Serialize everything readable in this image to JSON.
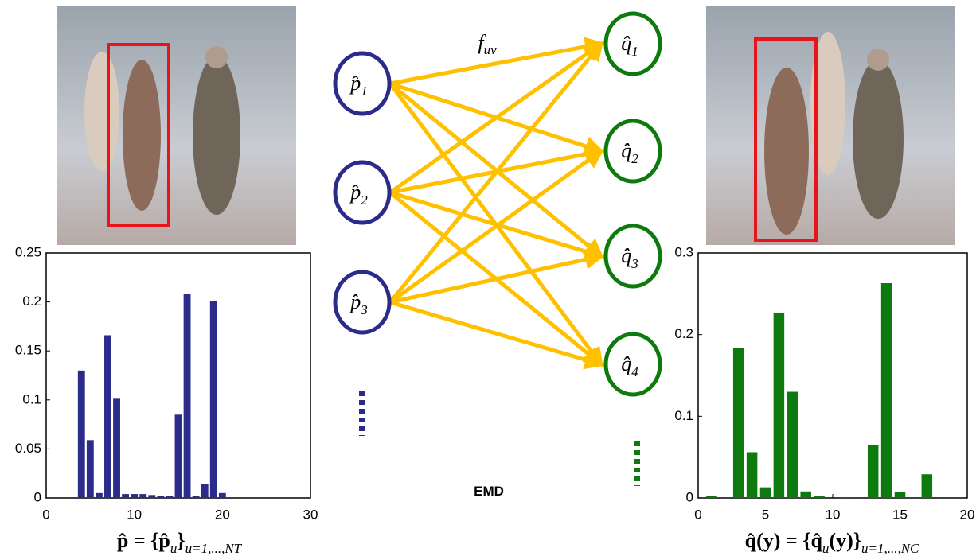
{
  "chart_data": [
    {
      "type": "bar",
      "color": "#2b2b8c",
      "x": [
        4,
        5,
        6,
        7,
        8,
        9,
        10,
        11,
        12,
        13,
        14,
        15,
        16,
        17,
        18,
        19,
        20
      ],
      "values": [
        0.13,
        0.059,
        0.005,
        0.166,
        0.102,
        0.004,
        0.004,
        0.004,
        0.003,
        0.002,
        0.002,
        0.085,
        0.208,
        0.002,
        0.014,
        0.201,
        0.005
      ],
      "xlim": [
        0,
        30
      ],
      "ylim": [
        0,
        0.25
      ],
      "xticks": [
        0,
        10,
        20,
        30
      ],
      "yticks": [
        0,
        0.05,
        0.1,
        0.15,
        0.2,
        0.25
      ],
      "caption": [
        {
          "text": "p̂ = {p̂",
          "sub": false
        },
        {
          "text": "u",
          "sub": true
        },
        {
          "text": "}",
          "sub": false
        },
        {
          "text": "u=1,...,N",
          "sub": true
        },
        {
          "text": "T",
          "sub": true
        }
      ]
    },
    {
      "type": "bar",
      "color": "#0d7a0d",
      "x": [
        1,
        3,
        4,
        5,
        6,
        7,
        8,
        9,
        11,
        13,
        14,
        15,
        17
      ],
      "values": [
        0.002,
        0.184,
        0.056,
        0.013,
        0.227,
        0.13,
        0.008,
        0.002,
        0.001,
        0.065,
        0.263,
        0.007,
        0.029
      ],
      "xlim": [
        0,
        20
      ],
      "ylim": [
        0,
        0.3
      ],
      "xticks": [
        0,
        5,
        10,
        15,
        20
      ],
      "yticks": [
        0,
        0.1,
        0.2,
        0.3
      ],
      "caption": [
        {
          "text": "q̂(y) = {q̂",
          "sub": false
        },
        {
          "text": "u",
          "sub": true
        },
        {
          "text": "(y)}",
          "sub": false
        },
        {
          "text": "u=1,...,N",
          "sub": true
        },
        {
          "text": "C",
          "sub": true
        }
      ]
    }
  ],
  "source_nodes": [
    {
      "base": "p̂",
      "sub": "1"
    },
    {
      "base": "p̂",
      "sub": "2"
    },
    {
      "base": "p̂",
      "sub": "3"
    }
  ],
  "target_nodes": [
    {
      "base": "q̂",
      "sub": "1"
    },
    {
      "base": "q̂",
      "sub": "2"
    },
    {
      "base": "q̂",
      "sub": "3"
    },
    {
      "base": "q̂",
      "sub": "4"
    }
  ],
  "edge_label": {
    "base": "f",
    "sub": "uv"
  },
  "center_label": "EMD"
}
